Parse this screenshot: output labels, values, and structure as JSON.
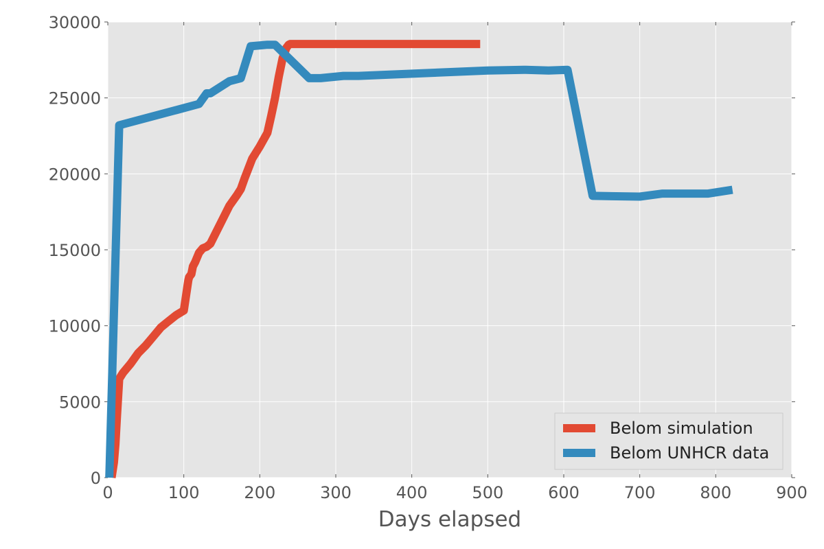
{
  "chart_data": {
    "type": "line",
    "title": "",
    "xlabel": "Days elapsed",
    "ylabel": "",
    "xlim": [
      0,
      900
    ],
    "ylim": [
      0,
      30000
    ],
    "xticks": [
      0,
      100,
      200,
      300,
      400,
      500,
      600,
      700,
      800,
      900
    ],
    "yticks": [
      0,
      5000,
      10000,
      15000,
      20000,
      25000,
      30000
    ],
    "xtick_labels": [
      "0",
      "100",
      "200",
      "300",
      "400",
      "500",
      "600",
      "700",
      "800",
      "900"
    ],
    "ytick_labels": [
      "0",
      "5000",
      "10000",
      "15000",
      "20000",
      "25000",
      "30000"
    ],
    "grid": true,
    "legend_position": "lower-right",
    "series": [
      {
        "name": "Belom simulation",
        "color": "#e24a33",
        "x": [
          5,
          8,
          10,
          12,
          15,
          20,
          30,
          40,
          50,
          60,
          70,
          80,
          90,
          100,
          106,
          107,
          110,
          112,
          115,
          120,
          125,
          130,
          135,
          140,
          150,
          160,
          170,
          175,
          180,
          190,
          200,
          210,
          215,
          220,
          225,
          230,
          235,
          238,
          240,
          250,
          300,
          350,
          400,
          450,
          490
        ],
        "y": [
          0,
          1000,
          2200,
          4000,
          6500,
          6900,
          7500,
          8200,
          8700,
          9300,
          9900,
          10300,
          10700,
          11000,
          13000,
          13200,
          13400,
          13900,
          14200,
          14800,
          15100,
          15200,
          15400,
          15900,
          16900,
          17900,
          18600,
          19000,
          19700,
          21000,
          21800,
          22700,
          23800,
          25000,
          26400,
          27600,
          28300,
          28500,
          28550,
          28550,
          28550,
          28550,
          28550,
          28550,
          28550
        ]
      },
      {
        "name": "Belom UNHCR data",
        "color": "#348abd",
        "x": [
          2,
          15,
          90,
          120,
          130,
          135,
          160,
          175,
          188,
          210,
          220,
          265,
          280,
          310,
          330,
          500,
          550,
          580,
          605,
          638,
          700,
          730,
          790,
          822
        ],
        "y": [
          0,
          23200,
          24200,
          24600,
          25300,
          25300,
          26100,
          26300,
          28400,
          28500,
          28500,
          26300,
          26300,
          26450,
          26450,
          26800,
          26850,
          26800,
          26850,
          18550,
          18500,
          18700,
          18700,
          18950
        ]
      }
    ]
  }
}
